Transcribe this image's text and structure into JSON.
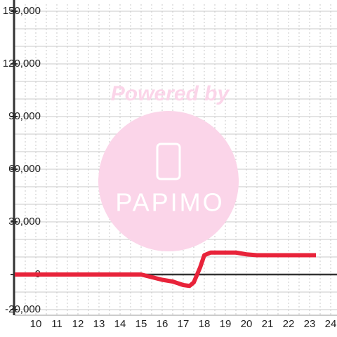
{
  "chart_data": {
    "type": "line",
    "x": [
      9,
      13,
      15,
      15.5,
      16,
      16.5,
      17,
      17.3,
      17.5,
      17.8,
      18,
      18.3,
      19,
      19.5,
      20,
      20.5,
      22,
      23.3
    ],
    "series": [
      {
        "color": "#e8233a",
        "values": [
          0,
          0,
          0,
          -1500,
          -3000,
          -4000,
          -6000,
          -6500,
          -4500,
          4000,
          11000,
          12500,
          12500,
          12500,
          11500,
          11000,
          11000,
          11000
        ]
      }
    ],
    "xlim": [
      9,
      24.3
    ],
    "xticks": [
      10,
      11,
      12,
      13,
      14,
      15,
      16,
      17,
      18,
      19,
      20,
      21,
      22,
      23,
      24
    ],
    "minor_xticks": [
      9.5,
      10.5,
      11.5,
      12.5,
      13.5,
      14.5,
      15.5,
      16.5,
      17.5,
      18.5,
      19.5,
      20.5,
      21.5,
      22.5,
      23.5
    ],
    "ylim": [
      -20000,
      150000
    ],
    "yticks": [
      {
        "value": -20000,
        "label": "-20,000"
      },
      0,
      {
        "value": 30000,
        "label": "30,000"
      },
      {
        "value": 60000,
        "label": "60,000"
      },
      {
        "value": 90000,
        "label": "90,000"
      },
      {
        "value": 120000,
        "label": "120,000"
      },
      {
        "value": 150000,
        "label": "150,000"
      }
    ],
    "minor_yticks": [
      -10000,
      10000,
      20000,
      40000,
      50000,
      70000,
      80000,
      100000,
      110000,
      130000,
      140000
    ],
    "grid": true
  },
  "watermark": {
    "line1": "Powered by",
    "line2": "PAPIMO"
  }
}
